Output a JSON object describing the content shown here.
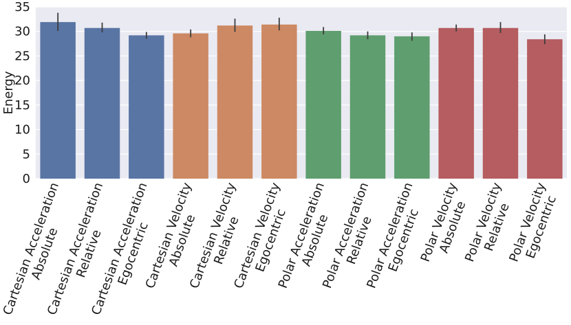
{
  "chart_data": {
    "type": "bar",
    "title": "",
    "xlabel": "",
    "ylabel": "Energy",
    "ylim": [
      0,
      35
    ],
    "yticks": [
      0,
      5,
      10,
      15,
      20,
      25,
      30,
      35
    ],
    "grid": true,
    "background_color": "#eaeaf2",
    "categories": [
      [
        "Cartesian Acceleration",
        "Absolute"
      ],
      [
        "Cartesian Acceleration",
        "Relative"
      ],
      [
        "Cartesian Acceleration",
        "Egocentric"
      ],
      [
        "Cartesian Velocity",
        "Absolute"
      ],
      [
        "Cartesian Velocity",
        "Relative"
      ],
      [
        "Cartesian Velocity",
        "Egocentric"
      ],
      [
        "Polar Acceleration",
        "Absolute"
      ],
      [
        "Polar Acceleration",
        "Relative"
      ],
      [
        "Polar Acceleration",
        "Egocentric"
      ],
      [
        "Polar Velocity",
        "Absolute"
      ],
      [
        "Polar Velocity",
        "Relative"
      ],
      [
        "Polar Velocity",
        "Egocentric"
      ]
    ],
    "values": [
      31.9,
      30.7,
      29.2,
      29.6,
      31.2,
      31.4,
      30.1,
      29.2,
      29.0,
      30.7,
      30.7,
      28.4
    ],
    "error_low": [
      30.1,
      29.8,
      28.5,
      28.8,
      29.9,
      30.2,
      29.4,
      28.4,
      28.1,
      30.0,
      29.7,
      27.4
    ],
    "error_high": [
      33.8,
      31.8,
      29.9,
      30.4,
      32.6,
      32.8,
      30.9,
      30.0,
      29.8,
      31.4,
      31.9,
      29.4
    ],
    "colors": [
      "#5875a4",
      "#5875a4",
      "#5875a4",
      "#cc8963",
      "#cc8963",
      "#cc8963",
      "#5f9e6e",
      "#5f9e6e",
      "#5f9e6e",
      "#b55d60",
      "#b55d60",
      "#b55d60"
    ],
    "error_color": "#3d3d3d"
  }
}
